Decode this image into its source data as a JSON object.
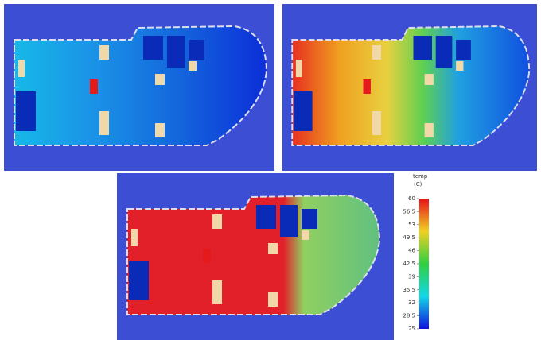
{
  "colorbar": {
    "title": "temp",
    "unit": "(C)",
    "range": [
      25,
      60
    ],
    "ticks": [
      60,
      56.5,
      53,
      49.5,
      46,
      42.5,
      39,
      35.5,
      32,
      28.5,
      25
    ]
  }
}
